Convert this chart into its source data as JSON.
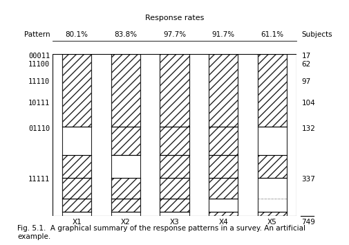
{
  "patterns": [
    "00011",
    "11100",
    "11110",
    "10111",
    "01110",
    "11111"
  ],
  "subjects": [
    17,
    62,
    97,
    104,
    132,
    337
  ],
  "total": 749,
  "variables": [
    "X1",
    "X2",
    "X3",
    "X4",
    "X5"
  ],
  "response_rates": [
    "80.1%",
    "83.8%",
    "97.7%",
    "91.7%",
    "61.1%"
  ],
  "title": "Response rates",
  "pattern_label": "Pattern",
  "subjects_label": "Subjects",
  "caption": "Fig. 5.1.  A graphical summary of the response patterns in a survey. An artificial\nexample.",
  "hatch_pattern": "///",
  "bar_width": 0.6,
  "figsize": [
    5.05,
    3.54
  ],
  "dpi": 100,
  "background": "#ffffff",
  "edge_color": "#222222",
  "hatch_color": "#555555",
  "dotted_border_color": "#888888"
}
